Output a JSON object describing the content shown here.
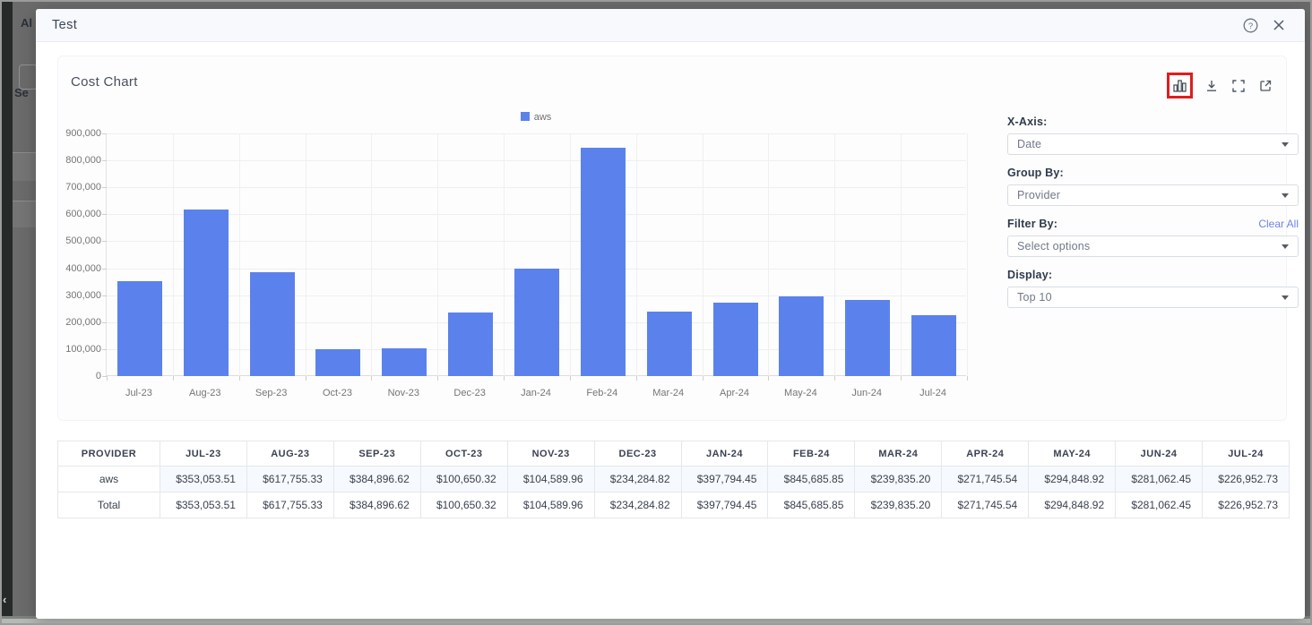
{
  "background": {
    "nav_fragment": "Al",
    "label_fragment": "Se",
    "collapse_glyph": "‹"
  },
  "modal": {
    "title": "Test",
    "help_icon": "?",
    "close_icon": "✕"
  },
  "chart_card": {
    "title": "Cost Chart",
    "toolbar": {
      "chart_type_icon": "bar-chart",
      "download_icon": "download",
      "fullscreen_icon": "fullscreen",
      "open_external_icon": "open-in-new"
    }
  },
  "controls": {
    "x_axis_label": "X-Axis:",
    "x_axis_value": "Date",
    "group_by_label": "Group By:",
    "group_by_value": "Provider",
    "filter_by_label": "Filter By:",
    "filter_by_placeholder": "Select options",
    "clear_all_label": "Clear All",
    "display_label": "Display:",
    "display_value": "Top 10"
  },
  "chart_data": {
    "type": "bar",
    "title": "Cost Chart",
    "legend_position": "top-center",
    "categories": [
      "Jul-23",
      "Aug-23",
      "Sep-23",
      "Oct-23",
      "Nov-23",
      "Dec-23",
      "Jan-24",
      "Feb-24",
      "Mar-24",
      "Apr-24",
      "May-24",
      "Jun-24",
      "Jul-24"
    ],
    "series": [
      {
        "name": "aws",
        "color": "#5b82ec",
        "values": [
          353053.51,
          617755.33,
          384896.62,
          100650.32,
          104589.96,
          234284.82,
          397794.45,
          845685.85,
          239835.2,
          271745.54,
          294848.92,
          281062.45,
          226952.73
        ]
      }
    ],
    "ylim": [
      0,
      900000
    ],
    "y_ticks": [
      "0",
      "100,000",
      "200,000",
      "300,000",
      "400,000",
      "500,000",
      "600,000",
      "700,000",
      "800,000",
      "900,000"
    ],
    "grid": true,
    "xlabel": "",
    "ylabel": ""
  },
  "table": {
    "headers": [
      "PROVIDER",
      "JUL-23",
      "AUG-23",
      "SEP-23",
      "OCT-23",
      "NOV-23",
      "DEC-23",
      "JAN-24",
      "FEB-24",
      "MAR-24",
      "APR-24",
      "MAY-24",
      "JUN-24",
      "JUL-24"
    ],
    "rows": [
      {
        "provider": "aws",
        "highlight": true,
        "values": [
          "$353,053.51",
          "$617,755.33",
          "$384,896.62",
          "$100,650.32",
          "$104,589.96",
          "$234,284.82",
          "$397,794.45",
          "$845,685.85",
          "$239,835.20",
          "$271,745.54",
          "$294,848.92",
          "$281,062.45",
          "$226,952.73"
        ]
      },
      {
        "provider": "Total",
        "highlight": false,
        "values": [
          "$353,053.51",
          "$617,755.33",
          "$384,896.62",
          "$100,650.32",
          "$104,589.96",
          "$234,284.82",
          "$397,794.45",
          "$845,685.85",
          "$239,835.20",
          "$271,745.54",
          "$294,848.92",
          "$281,062.45",
          "$226,952.73"
        ]
      }
    ]
  },
  "colors": {
    "bar": "#5b82ec",
    "link": "#6f7ff0",
    "annotation": "#e01d1d",
    "header_band": "#f7f9fd",
    "row_highlight": "#f6f9fd"
  }
}
